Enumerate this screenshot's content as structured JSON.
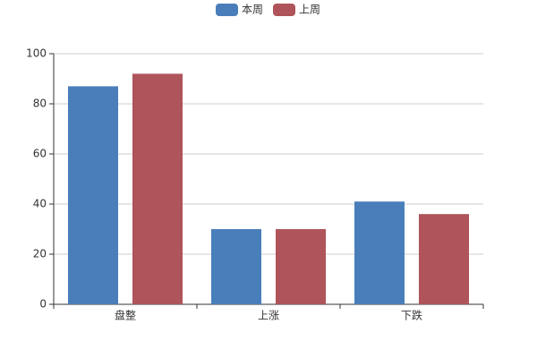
{
  "chart_data": {
    "type": "bar",
    "categories": [
      "盘整",
      "上涨",
      "下跌"
    ],
    "series": [
      {
        "name": "本周",
        "color": "#4a7ebb",
        "values": [
          87,
          30,
          41
        ]
      },
      {
        "name": "上周",
        "color": "#ae545a",
        "values": [
          92,
          30,
          36
        ]
      }
    ],
    "ylim": [
      0,
      100
    ],
    "yticks": [
      0,
      20,
      40,
      60,
      80,
      100
    ],
    "grid": true,
    "legend": "top"
  }
}
